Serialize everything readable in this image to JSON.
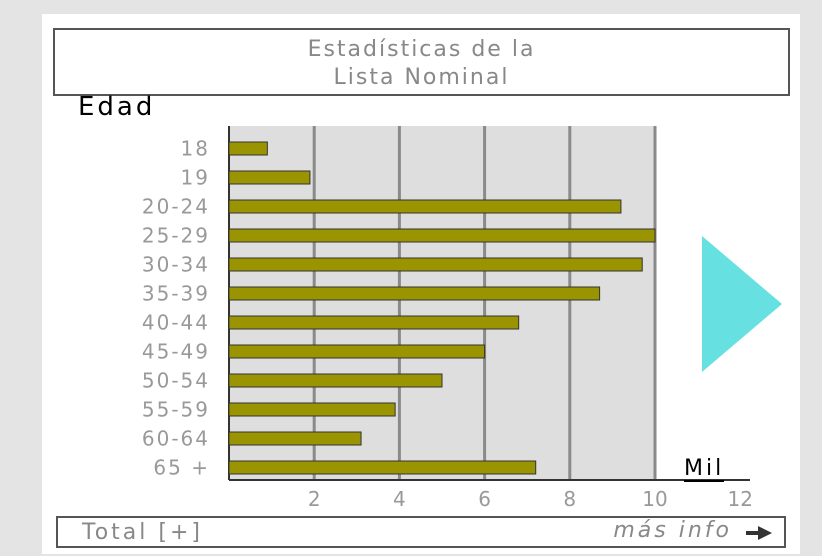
{
  "title_line1": "Estadísticas de la",
  "title_line2": "Lista Nominal",
  "ylabel": "Edad",
  "unit_label": "Mil",
  "footer": {
    "total_label": "Total [+]",
    "more_label": "más info"
  },
  "colors": {
    "bar": "#9a9400",
    "plot_bg": "#dedede",
    "grid": "#8a8a8a",
    "arrow": "#66e0e0"
  },
  "chart_data": {
    "type": "bar",
    "orientation": "horizontal",
    "title": "Estadísticas de la Lista Nominal",
    "ylabel": "Edad",
    "xlabel": "Mil",
    "categories": [
      "18",
      "19",
      "20-24",
      "25-29",
      "30-34",
      "35-39",
      "40-44",
      "45-49",
      "50-54",
      "55-59",
      "60-64",
      "65 +"
    ],
    "values": [
      0.9,
      1.9,
      9.2,
      10.0,
      9.7,
      8.7,
      6.8,
      6.0,
      5.0,
      3.9,
      3.1,
      7.2
    ],
    "xticks": [
      2,
      4,
      6,
      8,
      10,
      12
    ],
    "xlim": [
      0,
      12
    ],
    "grid": true
  }
}
